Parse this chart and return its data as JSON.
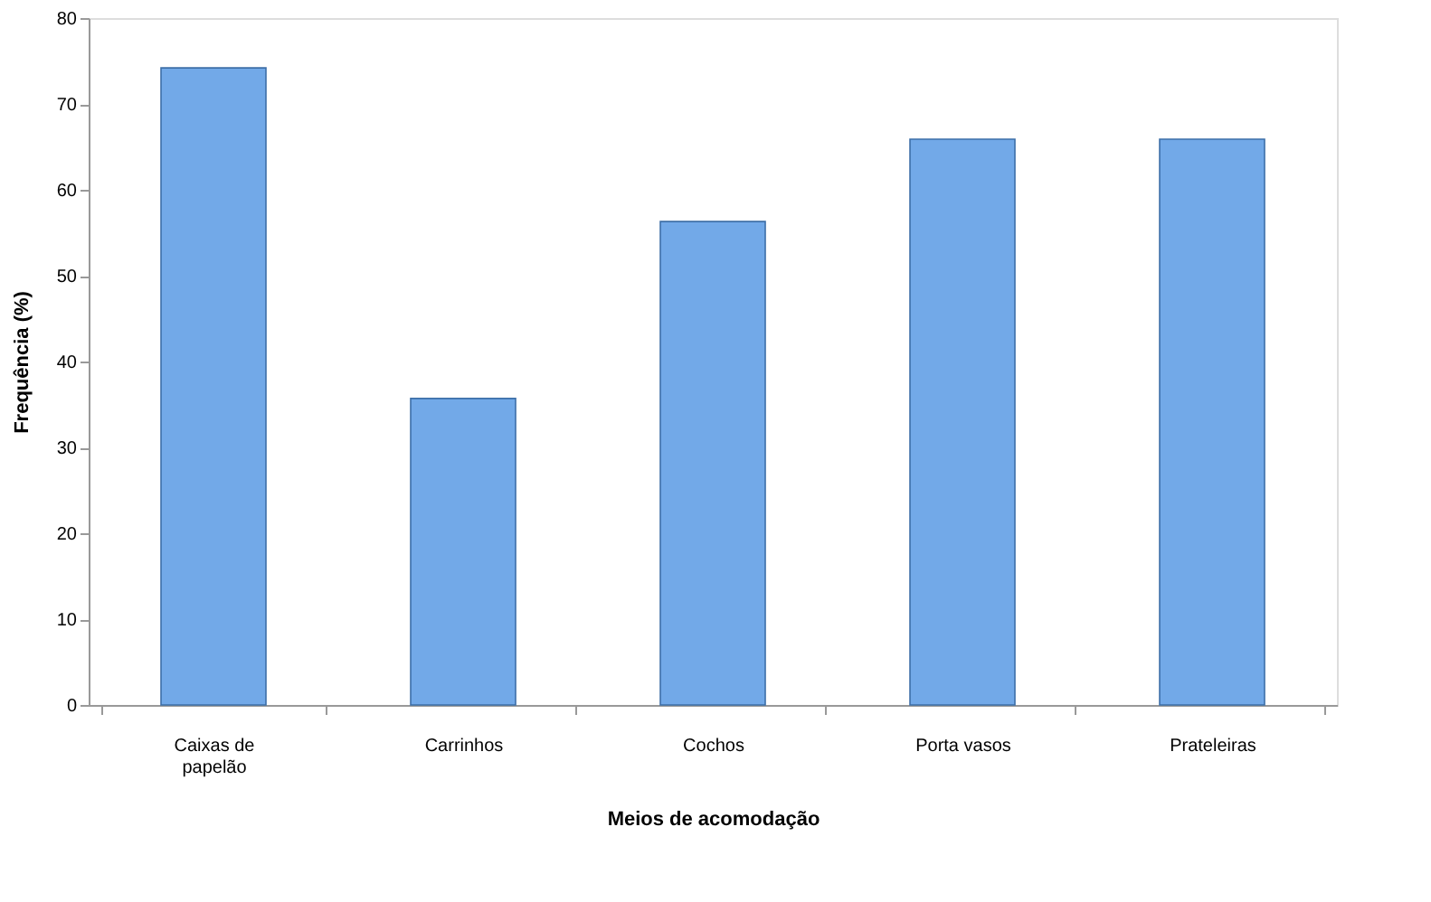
{
  "chart_data": {
    "type": "bar",
    "xlabel": "Meios de acomodação",
    "ylabel": "Frequência (%)",
    "categories": [
      "Caixas de papelão",
      "Carrinhos",
      "Cochos",
      "Porta vasos",
      "Prateleiras"
    ],
    "values": [
      74.2,
      35.7,
      56.3,
      65.9,
      65.9
    ],
    "color": "#72a9e8",
    "ylim": [
      0,
      80
    ],
    "yticks": [
      0,
      10,
      20,
      30,
      40,
      50,
      60,
      70,
      80
    ],
    "grid": false
  }
}
